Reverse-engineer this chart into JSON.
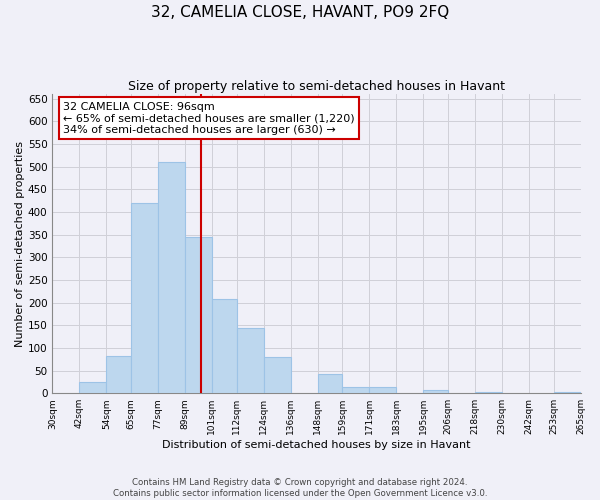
{
  "title": "32, CAMELIA CLOSE, HAVANT, PO9 2FQ",
  "subtitle": "Size of property relative to semi-detached houses in Havant",
  "xlabel": "Distribution of semi-detached houses by size in Havant",
  "ylabel": "Number of semi-detached properties",
  "footer_line1": "Contains HM Land Registry data © Crown copyright and database right 2024.",
  "footer_line2": "Contains public sector information licensed under the Open Government Licence v3.0.",
  "bar_left_edges": [
    30,
    42,
    54,
    65,
    77,
    89,
    101,
    112,
    124,
    136,
    148,
    159,
    171,
    183,
    195,
    206,
    218,
    230,
    242,
    253
  ],
  "bar_widths": [
    12,
    12,
    11,
    12,
    12,
    12,
    11,
    12,
    12,
    12,
    11,
    12,
    12,
    12,
    11,
    12,
    12,
    12,
    11,
    12
  ],
  "bar_heights": [
    0,
    25,
    82,
    420,
    510,
    345,
    208,
    145,
    80,
    0,
    42,
    14,
    14,
    0,
    6,
    0,
    3,
    0,
    0,
    3
  ],
  "bar_color": "#bdd7ee",
  "bar_edgecolor": "#9dc3e6",
  "vline_x": 96,
  "vline_color": "#cc0000",
  "annotation_text_lines": [
    "32 CAMELIA CLOSE: 96sqm",
    "← 65% of semi-detached houses are smaller (1,220)",
    "34% of semi-detached houses are larger (630) →"
  ],
  "xlim": [
    30,
    265
  ],
  "ylim": [
    0,
    660
  ],
  "yticks": [
    0,
    50,
    100,
    150,
    200,
    250,
    300,
    350,
    400,
    450,
    500,
    550,
    600,
    650
  ],
  "xtick_labels": [
    "30sqm",
    "42sqm",
    "54sqm",
    "65sqm",
    "77sqm",
    "89sqm",
    "101sqm",
    "112sqm",
    "124sqm",
    "136sqm",
    "148sqm",
    "159sqm",
    "171sqm",
    "183sqm",
    "195sqm",
    "206sqm",
    "218sqm",
    "230sqm",
    "242sqm",
    "253sqm",
    "265sqm"
  ],
  "xtick_positions": [
    30,
    42,
    54,
    65,
    77,
    89,
    101,
    112,
    124,
    136,
    148,
    159,
    171,
    183,
    195,
    206,
    218,
    230,
    242,
    253,
    265
  ],
  "grid_color": "#d0d0d8",
  "background_color": "#f0f0f8"
}
